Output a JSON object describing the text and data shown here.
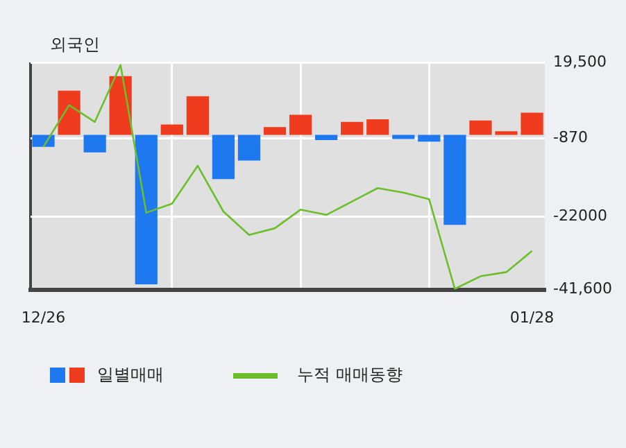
{
  "chart_data": {
    "type": "bar",
    "title": "외국인",
    "categories": [
      "12/26",
      null,
      null,
      null,
      null,
      null,
      null,
      null,
      null,
      null,
      null,
      null,
      null,
      null,
      null,
      null,
      null,
      null,
      null,
      "01/28"
    ],
    "series": [
      {
        "name": "일별매매",
        "colors": [
          "#1e78f0",
          "#f03c1e",
          "#1e78f0",
          "#f03c1e",
          "#1e78f0",
          "#f03c1e",
          "#f03c1e",
          "#1e78f0",
          "#1e78f0",
          "#f03c1e",
          "#f03c1e",
          "#1e78f0",
          "#f03c1e",
          "#f03c1e",
          "#1e78f0",
          "#1e78f0",
          "#1e78f0",
          "#f03c1e",
          "#f03c1e",
          "#f03c1e"
        ],
        "values": [
          -3200,
          11900,
          -4700,
          15800,
          -40200,
          2800,
          10400,
          -11900,
          -6900,
          2100,
          5400,
          -1400,
          3500,
          4200,
          -1100,
          -1800,
          -24200,
          3900,
          1000,
          6000
        ]
      },
      {
        "name": "누적 매매동향",
        "type": "line",
        "color": "#6cbf2a",
        "values": [
          -3200,
          8000,
          3500,
          18800,
          -20900,
          -18500,
          -8300,
          -20600,
          -26900,
          -25100,
          -20100,
          -21500,
          -17900,
          -14300,
          -15500,
          -17300,
          -41400,
          -38000,
          -36900,
          -31200
        ]
      }
    ],
    "ylim": [
      -41600,
      19500
    ],
    "yticks": [
      {
        "value": 19500,
        "label": "19,500"
      },
      -870,
      -22000,
      {
        "value": -41600,
        "label": "-41,600"
      }
    ],
    "grid": true,
    "legend": "bottom",
    "marker": "none",
    "line_style": "solid"
  }
}
